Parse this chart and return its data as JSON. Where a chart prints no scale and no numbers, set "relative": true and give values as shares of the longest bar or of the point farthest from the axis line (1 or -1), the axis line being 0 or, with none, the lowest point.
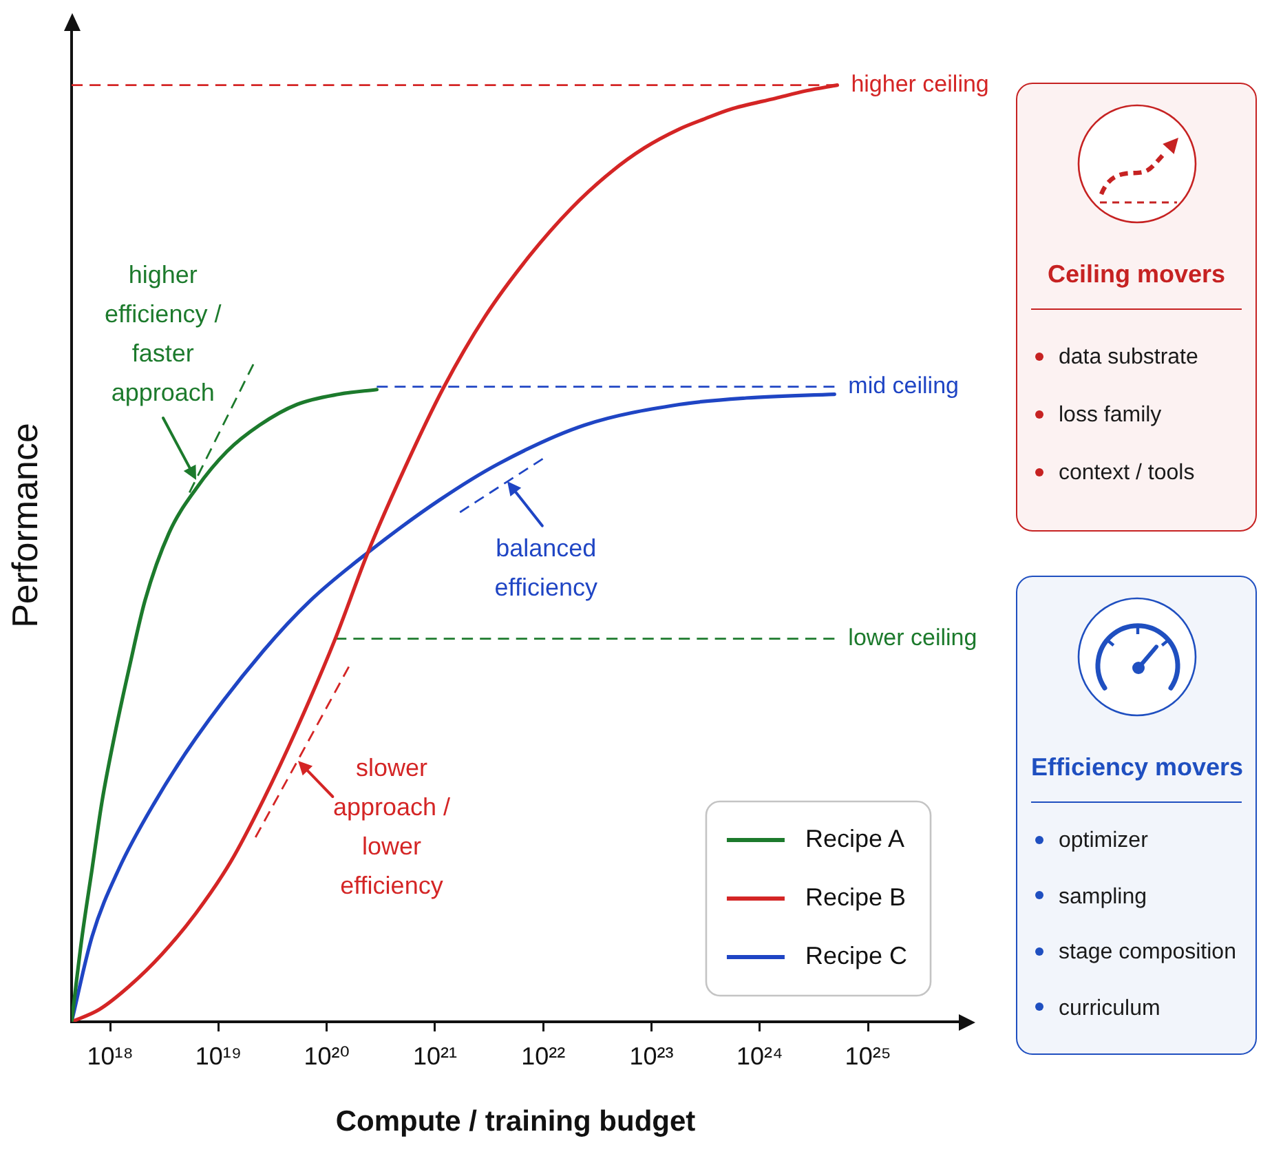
{
  "chart_data": [
    {
      "type": "line",
      "xlabel": "Compute / training budget",
      "ylabel": "Performance",
      "log": "x",
      "relative": true,
      "xlim": [
        4.4e+17,
        7e+25
      ],
      "xticks": [
        {
          "value": 1e+18,
          "label": "10¹⁸"
        },
        {
          "value": 1e+19,
          "label": "10¹⁹"
        },
        {
          "value": 1e+20,
          "label": "10²⁰"
        },
        {
          "value": 1e+21,
          "label": "10²¹"
        },
        {
          "value": 1e+22,
          "label": "10²²"
        },
        {
          "value": 1e+23,
          "label": "10²³"
        },
        {
          "value": 1e+24,
          "label": "10²⁴"
        },
        {
          "value": 1e+25,
          "label": "10²⁵"
        }
      ],
      "series": [
        {
          "name": "Recipe A",
          "color": "#1c7a2c",
          "x": [
            4.4e+17,
            5.5e+17,
            6.8e+17,
            8.4e+17,
            1.1e+18,
            1.5e+18,
            2.1e+18,
            3.5e+18,
            6.2e+18,
            1.2e+19,
            2.4e+19,
            5.3e+19,
            1.3e+20,
            2.9e+20
          ],
          "values": [
            0,
            0.091,
            0.163,
            0.235,
            0.306,
            0.378,
            0.45,
            0.522,
            0.569,
            0.609,
            0.637,
            0.659,
            0.67,
            0.675
          ]
        },
        {
          "name": "Recipe B",
          "color": "#d42525",
          "x": [
            4.4e+17,
            7.9e+17,
            1.5e+18,
            3e+18,
            6.2e+18,
            1.3e+19,
            2.6e+19,
            5.3e+19,
            1.2e+20,
            2.4e+20,
            5.3e+20,
            1.2e+21,
            2.9e+21,
            7.5e+21,
            1.8e+22,
            4.2e+22,
            8.6e+22,
            1.8e+23,
            3.1e+23,
            5.3e+23,
            1.4e+24,
            2.7e+24,
            5.2e+24
          ],
          "values": [
            0,
            0.013,
            0.038,
            0.072,
            0.116,
            0.171,
            0.237,
            0.313,
            0.409,
            0.501,
            0.592,
            0.677,
            0.753,
            0.818,
            0.868,
            0.907,
            0.933,
            0.953,
            0.964,
            0.974,
            0.986,
            0.994,
            1
          ]
        },
        {
          "name": "Recipe C",
          "color": "#1f45c4",
          "x": [
            4.4e+17,
            6.8e+17,
            1.2e+18,
            2.6e+18,
            6.2e+18,
            2.6e+19,
            7.1e+19,
            2.4e+20,
            1.1e+21,
            3.9e+21,
            2.4e+22,
            1.8e+23,
            7.5e+23,
            4.9e+24
          ],
          "values": [
            0,
            0.091,
            0.163,
            0.235,
            0.303,
            0.396,
            0.45,
            0.501,
            0.557,
            0.596,
            0.637,
            0.659,
            0.666,
            0.67
          ]
        },
        {
          "name": "higher ceiling",
          "color": "#d42525",
          "line_style": "dashed",
          "x": [
            4.4e+17,
            5.2e+24
          ],
          "values": [
            1,
            1
          ]
        },
        {
          "name": "mid ceiling",
          "color": "#1f45c4",
          "line_style": "dashed",
          "x": [
            2.9e+20,
            4.9e+24
          ],
          "values": [
            0.678,
            0.678
          ]
        },
        {
          "name": "lower ceiling",
          "color": "#1c7a2c",
          "line_style": "dashed",
          "x": [
            1.2e+20,
            4.9e+24
          ],
          "values": [
            0.409,
            0.409
          ]
        },
        {
          "color": "#1c7a2c",
          "line_style": "dashed",
          "x": [
            5.4e+18,
            6.2e+18,
            2.1e+19
          ],
          "values": [
            0.565,
            0.579,
            0.702
          ]
        },
        {
          "color": "#1f45c4",
          "line_style": "dashed",
          "x": [
            1.7e+21,
            4.7e+21,
            9.9e+21
          ],
          "values": [
            0.544,
            0.577,
            0.601
          ]
        },
        {
          "color": "#d42525",
          "line_style": "dashed",
          "x": [
            2.2e+19,
            5.4e+19,
            1.6e+20
          ],
          "values": [
            0.197,
            0.279,
            0.379
          ]
        }
      ],
      "annotations": [
        {
          "text": "higher efficiency / faster approach",
          "x": 6.2e+18,
          "y": 0.579
        },
        {
          "text": "balanced efficiency",
          "x": 4.7e+21,
          "y": 0.577
        },
        {
          "text": "slower approach / lower efficiency",
          "x": 5.4e+19,
          "y": 0.279
        }
      ],
      "legend": "bottom right"
    },
    {
      "type": "other",
      "title": "Ceiling movers",
      "color": "#c62222",
      "annotations": [
        "data substrate",
        "loss family",
        "context / tools"
      ]
    },
    {
      "type": "other",
      "title": "Efficiency movers",
      "color": "#1f4fc0",
      "annotations": [
        "optimizer",
        "sampling",
        "stage composition",
        "curriculum"
      ]
    }
  ]
}
